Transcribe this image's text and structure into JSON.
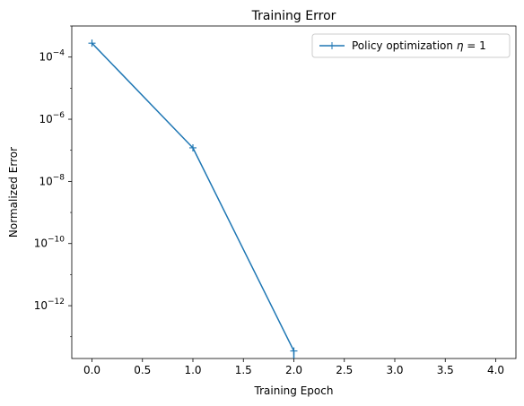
{
  "chart_data": {
    "type": "line",
    "title": "Training Error",
    "xlabel": "Training Epoch",
    "ylabel": "Normalized Error",
    "yscale": "log",
    "xlim": [
      -0.2,
      4.2
    ],
    "ylim": [
      2e-14,
      0.001
    ],
    "xticks": [
      0,
      0.5,
      1,
      1.5,
      2,
      2.5,
      3,
      3.5,
      4
    ],
    "xtick_labels": [
      "0.0",
      "0.5",
      "1.0",
      "1.5",
      "2.0",
      "2.5",
      "3.0",
      "3.5",
      "4.0"
    ],
    "yticks": [
      -12,
      -10,
      -8,
      -6,
      -4
    ],
    "ytick_labels": [
      {
        "base": "10",
        "exp": "−12"
      },
      {
        "base": "10",
        "exp": "−10"
      },
      {
        "base": "10",
        "exp": "−8"
      },
      {
        "base": "10",
        "exp": "−6"
      },
      {
        "base": "10",
        "exp": "−4"
      }
    ],
    "grid": false,
    "legend_position": "top-right",
    "series": [
      {
        "name": "Policy optimization η = 1",
        "legend_prefix": "Policy optimization ",
        "legend_symbol": "η",
        "legend_suffix": " = 1",
        "color": "#1f77b4",
        "marker": "+",
        "x": [
          0,
          1,
          2
        ],
        "y": [
          0.00028,
          1.2e-07,
          3.5e-14
        ],
        "drop_to_zero_at_x": 2
      }
    ]
  }
}
